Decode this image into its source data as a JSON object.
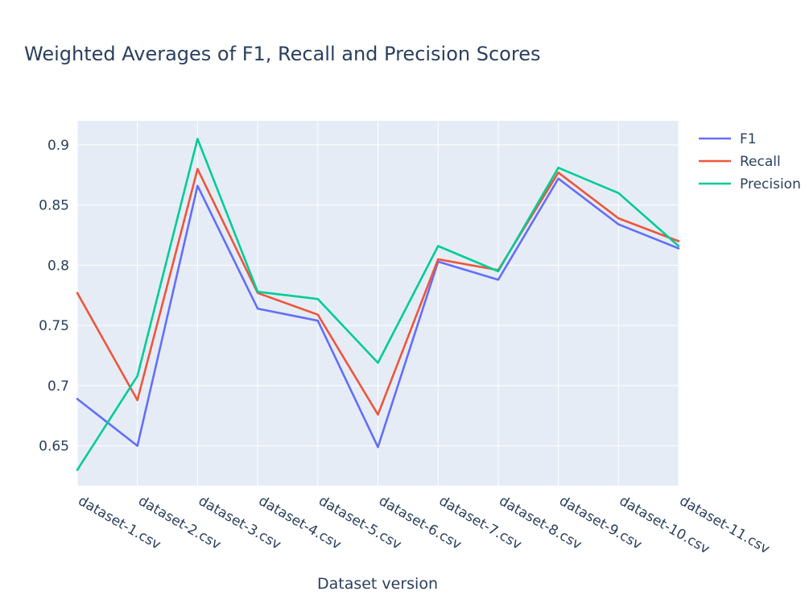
{
  "chart_data": {
    "type": "line",
    "title": "Weighted Averages of F1, Recall and Precision Scores",
    "xlabel": "Dataset version",
    "ylabel": "",
    "categories": [
      "dataset-1.csv",
      "dataset-2.csv",
      "dataset-3.csv",
      "dataset-4.csv",
      "dataset-5.csv",
      "dataset-6.csv",
      "dataset-7.csv",
      "dataset-8.csv",
      "dataset-9.csv",
      "dataset-10.csv",
      "dataset-11.csv"
    ],
    "ylim": [
      0.617,
      0.92
    ],
    "yticks": [
      0.65,
      0.7,
      0.75,
      0.8,
      0.85,
      0.9
    ],
    "ytick_labels": [
      "0.65",
      "0.7",
      "0.75",
      "0.8",
      "0.85",
      "0.9"
    ],
    "grid": true,
    "legend_position": "top-right",
    "series": [
      {
        "name": "F1",
        "color": "#636efa",
        "values": [
          0.689,
          0.65,
          0.866,
          0.764,
          0.754,
          0.649,
          0.803,
          0.788,
          0.872,
          0.834,
          0.814
        ]
      },
      {
        "name": "Recall",
        "color": "#ef553b",
        "values": [
          0.777,
          0.688,
          0.88,
          0.777,
          0.759,
          0.676,
          0.805,
          0.796,
          0.877,
          0.839,
          0.82
        ]
      },
      {
        "name": "Precision",
        "color": "#00cc96",
        "values": [
          0.63,
          0.708,
          0.905,
          0.778,
          0.772,
          0.719,
          0.816,
          0.795,
          0.881,
          0.86,
          0.816
        ]
      }
    ]
  }
}
